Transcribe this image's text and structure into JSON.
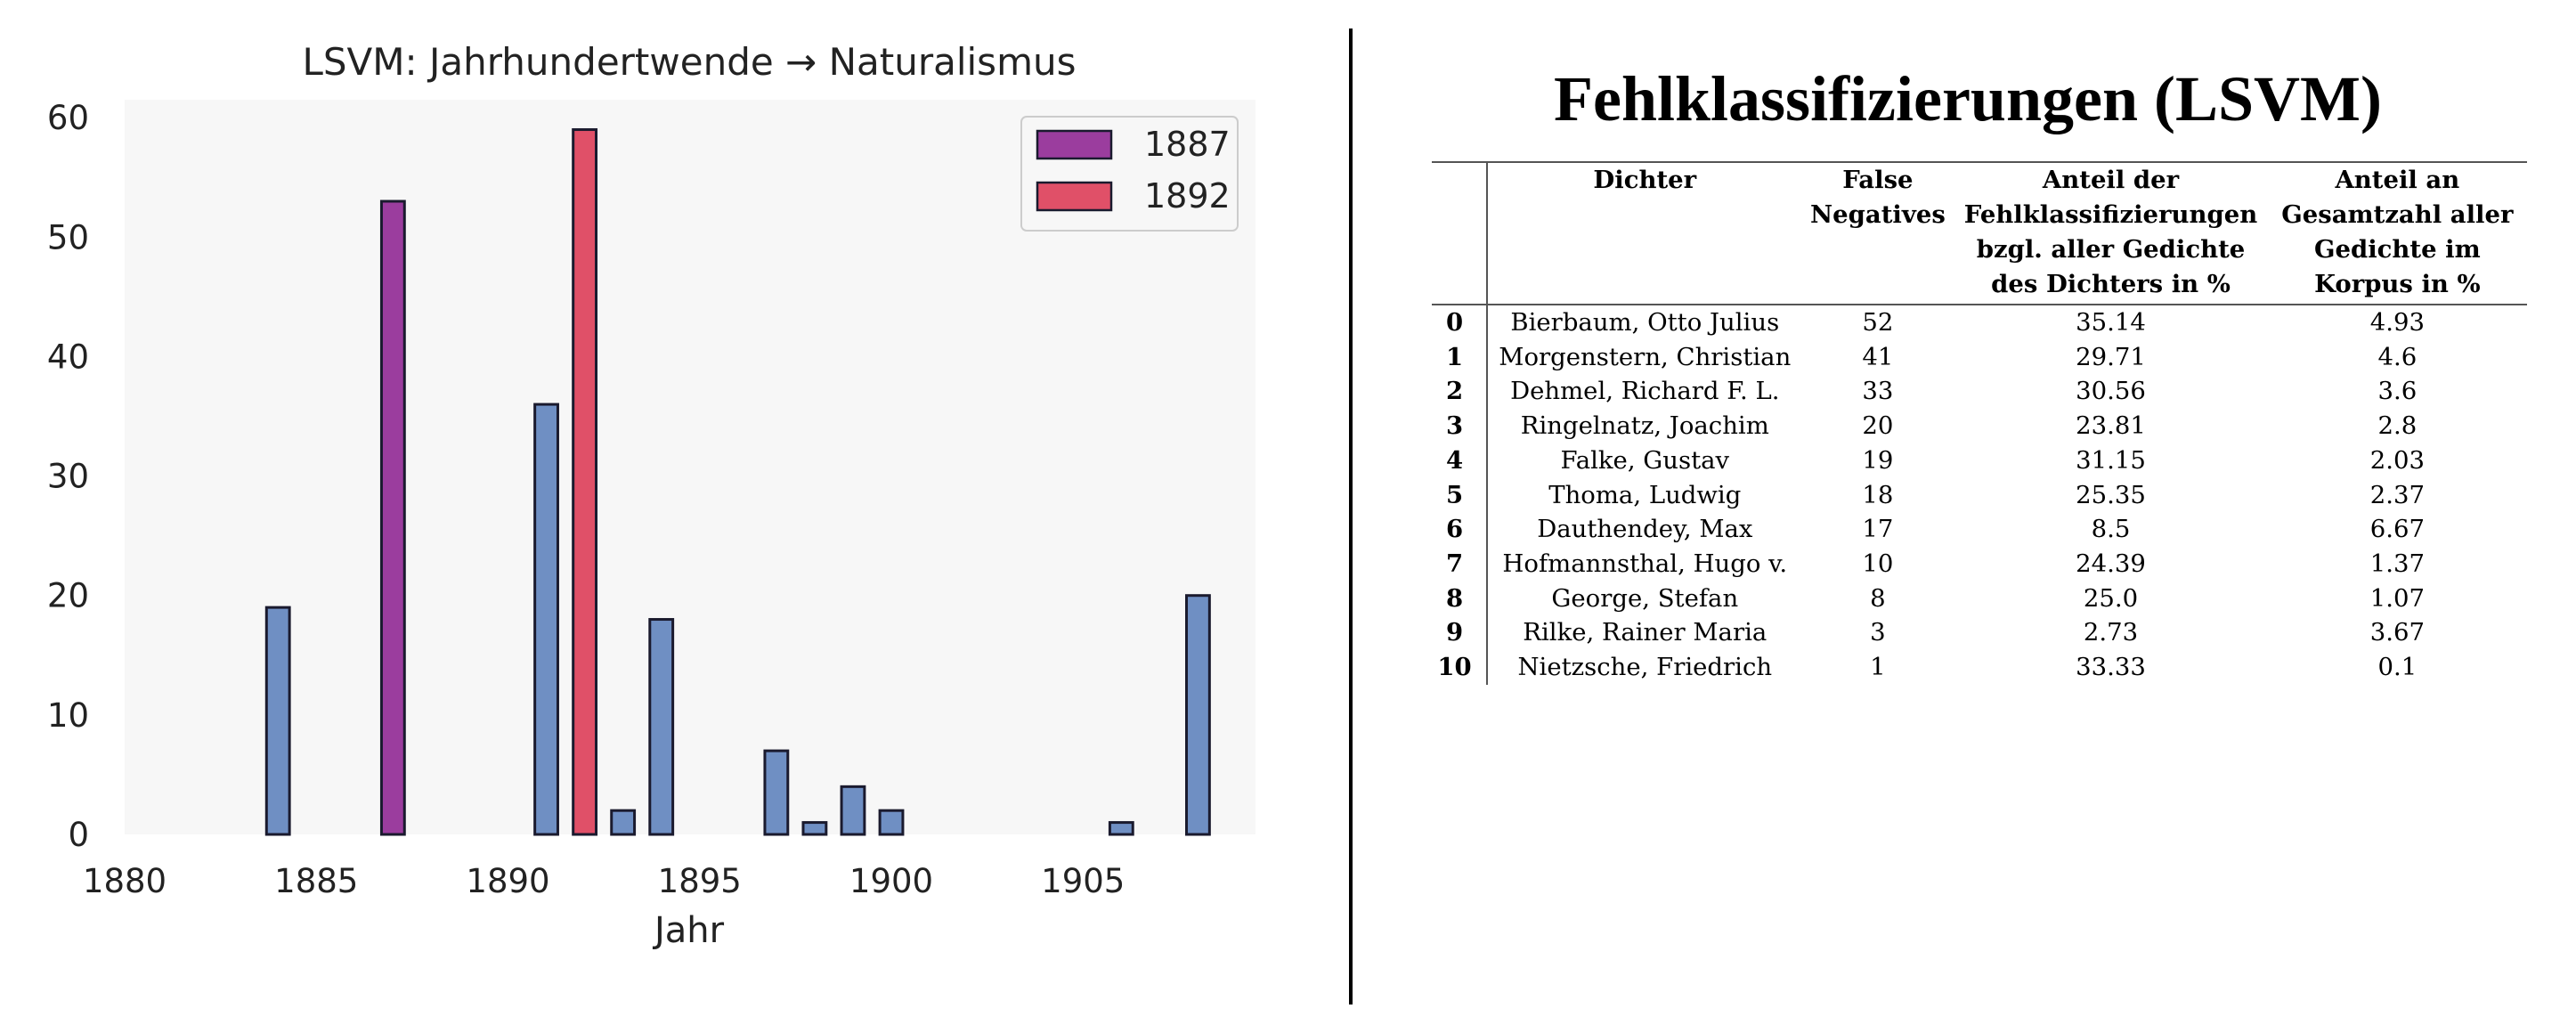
{
  "chart_data": {
    "type": "bar",
    "title": "LSVM: Jahrhundertwende → Naturalismus",
    "xlabel": "Jahr",
    "ylabel": "",
    "xlim": [
      1880,
      1909.5
    ],
    "ylim": [
      0,
      61.5
    ],
    "xticks": [
      1880,
      1885,
      1890,
      1895,
      1900,
      1905
    ],
    "yticks": [
      0,
      10,
      20,
      30,
      40,
      50,
      60
    ],
    "grid": false,
    "legend_position": "top-right",
    "bar_width_years": 0.6,
    "colors": {
      "base": "#6f8fc3",
      "1887": "#9b3d9e",
      "1892": "#e05068",
      "edge": "#1a1a2e",
      "plot_bg": "#f7f7f7"
    },
    "series": [
      {
        "name": "",
        "color": "#6f8fc3",
        "x": [
          1884,
          1891,
          1893,
          1894,
          1897,
          1898,
          1899,
          1900,
          1906,
          1908
        ],
        "values": [
          19,
          36,
          2,
          18,
          7,
          1,
          4,
          2,
          1,
          20
        ]
      },
      {
        "name": "1887",
        "color": "#9b3d9e",
        "x": [
          1887
        ],
        "values": [
          53
        ]
      },
      {
        "name": "1892",
        "color": "#e05068",
        "x": [
          1892
        ],
        "values": [
          59
        ]
      }
    ]
  },
  "table": {
    "title": "Fehlklassifizierungen (LSVM)",
    "headers": [
      "",
      "Dichter",
      "False Negatives",
      "Anteil der Fehlklassifizierungen bzgl. aller Gedichte des Dichters in %",
      "Anteil an Gesamtzahl aller Gedichte im Korpus in %"
    ],
    "rows": [
      [
        "0",
        "Bierbaum, Otto Julius",
        "52",
        "35.14",
        "4.93"
      ],
      [
        "1",
        "Morgenstern, Christian",
        "41",
        "29.71",
        "4.6"
      ],
      [
        "2",
        "Dehmel, Richard F. L.",
        "33",
        "30.56",
        "3.6"
      ],
      [
        "3",
        "Ringelnatz, Joachim",
        "20",
        "23.81",
        "2.8"
      ],
      [
        "4",
        "Falke, Gustav",
        "19",
        "31.15",
        "2.03"
      ],
      [
        "5",
        "Thoma, Ludwig",
        "18",
        "25.35",
        "2.37"
      ],
      [
        "6",
        "Dauthendey, Max",
        "17",
        "8.5",
        "6.67"
      ],
      [
        "7",
        "Hofmannsthal, Hugo v.",
        "10",
        "24.39",
        "1.37"
      ],
      [
        "8",
        "George, Stefan",
        "8",
        "25.0",
        "1.07"
      ],
      [
        "9",
        "Rilke, Rainer Maria",
        "3",
        "2.73",
        "3.67"
      ],
      [
        "10",
        "Nietzsche, Friedrich",
        "1",
        "33.33",
        "0.1"
      ]
    ]
  }
}
